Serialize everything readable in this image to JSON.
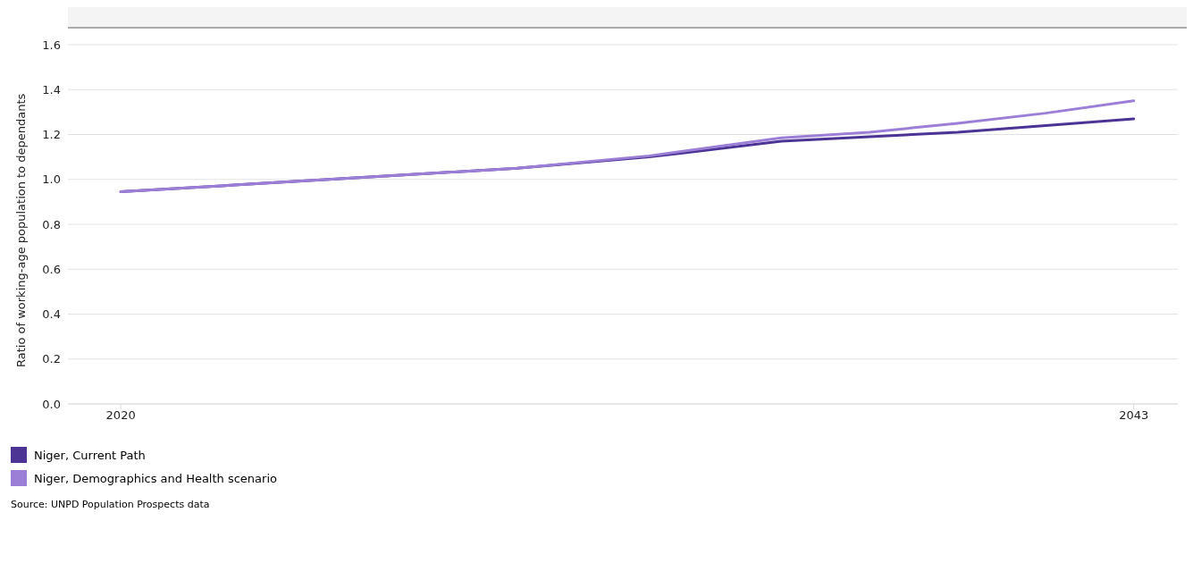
{
  "chart_data": {
    "type": "line",
    "ylabel": "Ratio of working-age population to dependants",
    "x": [
      2020,
      2023,
      2026,
      2029,
      2032,
      2035,
      2037,
      2039,
      2041,
      2043
    ],
    "series": [
      {
        "name": "Niger, Current Path",
        "color": "#4b3494",
        "values": [
          0.945,
          0.98,
          1.015,
          1.05,
          1.1,
          1.17,
          1.19,
          1.21,
          1.24,
          1.27
        ]
      },
      {
        "name": "Niger, Demographics and Health scenario",
        "color": "#9b7fd6",
        "values": [
          0.945,
          0.98,
          1.015,
          1.05,
          1.105,
          1.185,
          1.21,
          1.25,
          1.295,
          1.35
        ]
      }
    ],
    "xlim": [
      2018.8,
      2044
    ],
    "xticks": [
      2020,
      2043
    ],
    "ylim": [
      0,
      1.6
    ],
    "yticks": [
      {
        "value": 0,
        "label": "0.0"
      },
      {
        "value": 0.2,
        "label": "0.2"
      },
      {
        "value": 0.4,
        "label": "0.4"
      },
      {
        "value": 0.6,
        "label": "0.6"
      },
      {
        "value": 0.8,
        "label": "0.8"
      },
      {
        "value": 1,
        "label": "1.0"
      },
      {
        "value": 1.2,
        "label": "1.2"
      },
      {
        "value": 1.4,
        "label": "1.4"
      },
      {
        "value": 1.6,
        "label": "1.6"
      }
    ],
    "grid": "y",
    "legend": "bottom",
    "marker": "none",
    "line_style": "solid",
    "annotations": [
      "Source: UNPD Population Prospects data"
    ]
  }
}
